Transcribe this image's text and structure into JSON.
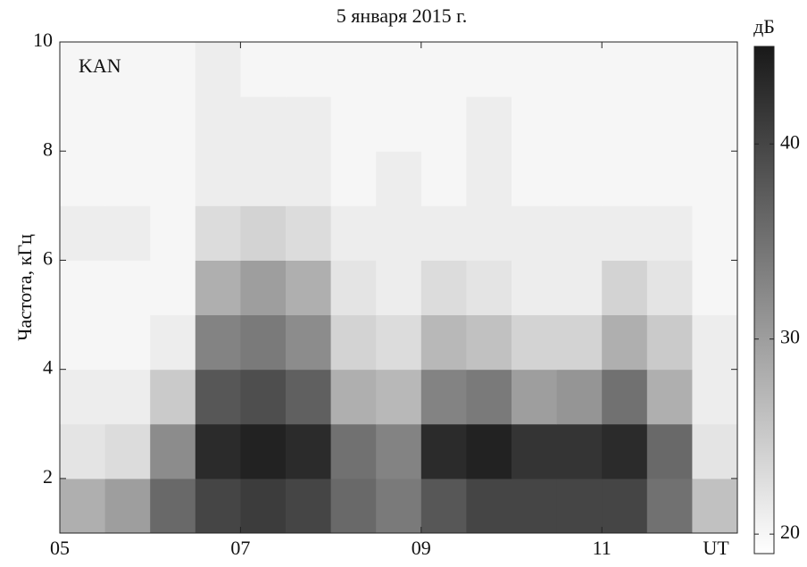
{
  "chart_data": {
    "type": "heatmap",
    "title": "5 января 2015 г.",
    "y_label": "Частота, кГц",
    "x_unit_label": "UT",
    "annotation": "KAN",
    "colorbar_label": "дБ",
    "x_bins": [
      5,
      5.5,
      6,
      6.5,
      7,
      7.5,
      8,
      8.5,
      9,
      9.5,
      10,
      10.5,
      11,
      11.5,
      12,
      12.5
    ],
    "y_bins": [
      1,
      2,
      3,
      4,
      5,
      6,
      7,
      8,
      9,
      10
    ],
    "values": [
      [
        28,
        30,
        36,
        40,
        41,
        40,
        36,
        34,
        38,
        40,
        40,
        40,
        40,
        35,
        26
      ],
      [
        22,
        23,
        32,
        43,
        44,
        43,
        35,
        33,
        43,
        44,
        42,
        42,
        43,
        36,
        22
      ],
      [
        21,
        21,
        25,
        38,
        39,
        37,
        28,
        27,
        33,
        34,
        30,
        31,
        35,
        28,
        21
      ],
      [
        20,
        20,
        21,
        33,
        34,
        32,
        24,
        23,
        27,
        26,
        24,
        24,
        28,
        25,
        21
      ],
      [
        20,
        20,
        20,
        28,
        30,
        28,
        22,
        21,
        23,
        22,
        21,
        21,
        24,
        22,
        20
      ],
      [
        21,
        21,
        20,
        23,
        24,
        23,
        21,
        21,
        21,
        21,
        21,
        21,
        21,
        21,
        20
      ],
      [
        20,
        20,
        20,
        21,
        21,
        21,
        20,
        21,
        20,
        21,
        20,
        20,
        20,
        20,
        20
      ],
      [
        20,
        20,
        20,
        21,
        21,
        21,
        20,
        20,
        20,
        21,
        20,
        20,
        20,
        20,
        20
      ],
      [
        20,
        20,
        20,
        21,
        20,
        20,
        20,
        20,
        20,
        20,
        20,
        20,
        20,
        20,
        20
      ]
    ],
    "xlim": [
      5,
      12.5
    ],
    "xticks": [
      {
        "value": 5,
        "label": "05"
      },
      {
        "value": 7,
        "label": "07"
      },
      {
        "value": 9,
        "label": "09"
      },
      {
        "value": 11,
        "label": "11"
      }
    ],
    "ylim": [
      1,
      10
    ],
    "yticks": [
      2,
      4,
      6,
      8,
      10
    ],
    "clim": [
      19,
      45
    ],
    "cticks": [
      20,
      30,
      40
    ]
  }
}
